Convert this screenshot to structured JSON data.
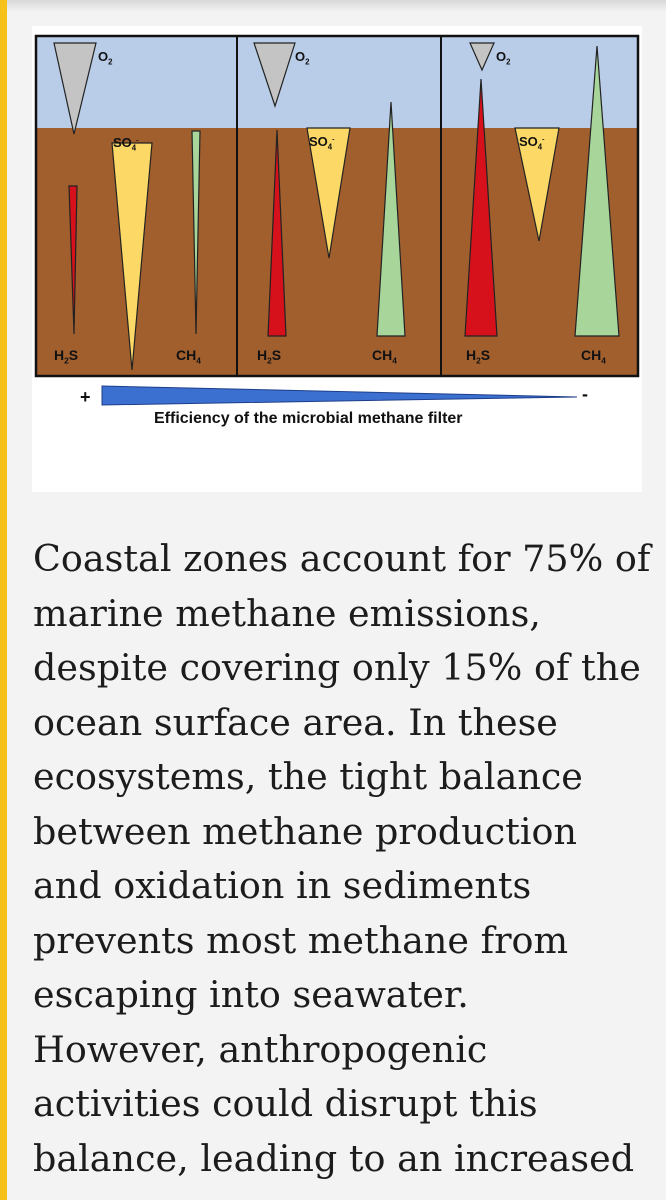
{
  "figure": {
    "colors": {
      "water": "#b9cde9",
      "sediment": "#a15f2e",
      "o2_wedge": "#c4c4c4",
      "so4_wedge": "#fcd866",
      "h2s_wedge": "#d6111b",
      "ch4_wedge": "#a7d59a",
      "efficiency_bar": "#3b6fd0"
    },
    "panels": [
      {
        "o2": "O2",
        "so4": "SO4",
        "h2s": "H2S",
        "ch4": "CH4"
      },
      {
        "o2": "O2",
        "so4": "SO4",
        "h2s": "H2S",
        "ch4": "CH4"
      },
      {
        "o2": "O2",
        "so4": "SO4",
        "h2s": "H2S",
        "ch4": "CH4"
      }
    ],
    "plus_sign": "+",
    "minus_sign": "-",
    "efficiency_label": "Efficiency of the microbial methane filter"
  },
  "article": {
    "paragraph": "Coastal zones account for 75% of\nmarine methane emissions,\ndespite covering only 15% of the\nocean surface area. In these\necosystems, the tight balance\nbetween methane production\nand oxidation in sediments\nprevents most methane from\nescaping into seawater.\nHowever, anthropogenic\nactivities could disrupt this\nbalance, leading to an increased"
  }
}
